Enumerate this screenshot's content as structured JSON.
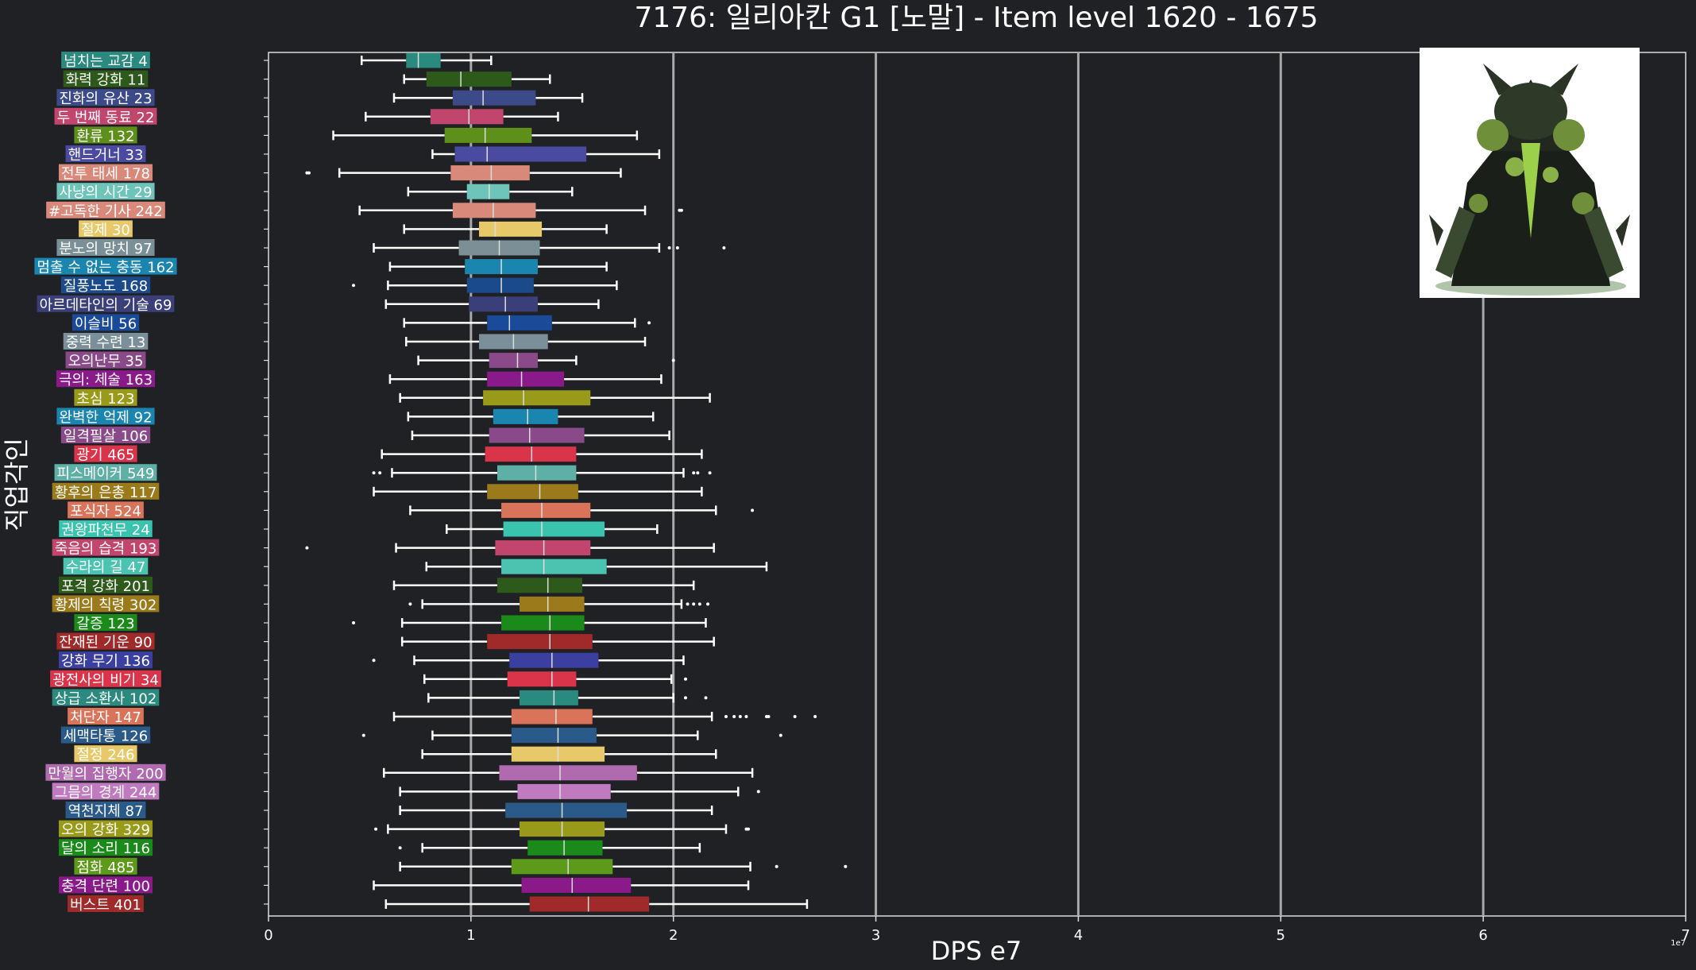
{
  "chart_data": {
    "type": "box",
    "title": "7176: 일리아칸 G1 [노말] - Item level 1620 - 1675",
    "xlabel": "DPS e7",
    "ylabel": "직업각인",
    "x_multiplier_label": "1e7",
    "xlim": [
      0,
      7
    ],
    "xticks": [
      0,
      1,
      2,
      3,
      4,
      5,
      6,
      7
    ],
    "grid": "vertical lines at x = 1, 2, 3, 4, 5, 6",
    "image_top_right": "boss-portrait",
    "series": [
      {
        "label": "넘치는 교감 4",
        "color": "#2a8a80",
        "whisker_low": 0.46,
        "q1": 0.68,
        "median": 0.74,
        "q3": 0.85,
        "whisker_high": 1.1,
        "outliers": []
      },
      {
        "label": "화력 강화 11",
        "color": "#2d5a1a",
        "whisker_low": 0.67,
        "q1": 0.78,
        "median": 0.95,
        "q3": 1.2,
        "whisker_high": 1.39,
        "outliers": []
      },
      {
        "label": "진화의 유산 23",
        "color": "#3d4a8a",
        "whisker_low": 0.62,
        "q1": 0.91,
        "median": 1.06,
        "q3": 1.32,
        "whisker_high": 1.55,
        "outliers": []
      },
      {
        "label": "두 번째 동료 22",
        "color": "#c2456e",
        "whisker_low": 0.48,
        "q1": 0.8,
        "median": 0.99,
        "q3": 1.16,
        "whisker_high": 1.43,
        "outliers": []
      },
      {
        "label": "환류 132",
        "color": "#5e8f1a",
        "whisker_low": 0.32,
        "q1": 0.87,
        "median": 1.07,
        "q3": 1.3,
        "whisker_high": 1.82,
        "outliers": []
      },
      {
        "label": "핸드거너 33",
        "color": "#4a4aa0",
        "whisker_low": 0.81,
        "q1": 0.92,
        "median": 1.08,
        "q3": 1.57,
        "whisker_high": 1.93,
        "outliers": []
      },
      {
        "label": "전투 태세 178",
        "color": "#d9897a",
        "whisker_low": 0.35,
        "q1": 0.9,
        "median": 1.1,
        "q3": 1.29,
        "whisker_high": 1.74,
        "outliers": [
          0.19,
          0.2
        ]
      },
      {
        "label": "사냥의 시간 29",
        "color": "#6ec4b9",
        "whisker_low": 0.69,
        "q1": 0.98,
        "median": 1.09,
        "q3": 1.19,
        "whisker_high": 1.5,
        "outliers": []
      },
      {
        "label": "#고독한 기사 242",
        "color": "#d9897a",
        "whisker_low": 0.45,
        "q1": 0.91,
        "median": 1.11,
        "q3": 1.32,
        "whisker_high": 1.86,
        "outliers": [
          2.03,
          2.04
        ]
      },
      {
        "label": "절제 30",
        "color": "#e8c96a",
        "whisker_low": 0.67,
        "q1": 1.04,
        "median": 1.12,
        "q3": 1.35,
        "whisker_high": 1.67,
        "outliers": []
      },
      {
        "label": "분노의 망치 97",
        "color": "#7a8f96",
        "whisker_low": 0.52,
        "q1": 0.94,
        "median": 1.14,
        "q3": 1.34,
        "whisker_high": 1.93,
        "outliers": [
          1.98,
          2.02,
          2.25
        ]
      },
      {
        "label": "멈출 수 없는 충동 162",
        "color": "#1a86b0",
        "whisker_low": 0.6,
        "q1": 0.97,
        "median": 1.15,
        "q3": 1.33,
        "whisker_high": 1.67,
        "outliers": []
      },
      {
        "label": "질풍노도 168",
        "color": "#1a4a8a",
        "whisker_low": 0.59,
        "q1": 0.98,
        "median": 1.15,
        "q3": 1.31,
        "whisker_high": 1.72,
        "outliers": [
          0.42
        ]
      },
      {
        "label": "아르데타인의 기술 69",
        "color": "#3a3f7a",
        "whisker_low": 0.58,
        "q1": 0.99,
        "median": 1.17,
        "q3": 1.33,
        "whisker_high": 1.63,
        "outliers": []
      },
      {
        "label": "이슬비 56",
        "color": "#1a4a9a",
        "whisker_low": 0.67,
        "q1": 1.08,
        "median": 1.19,
        "q3": 1.4,
        "whisker_high": 1.81,
        "outliers": [
          1.88
        ]
      },
      {
        "label": "중력 수련 13",
        "color": "#7a8f9a",
        "whisker_low": 0.68,
        "q1": 1.04,
        "median": 1.21,
        "q3": 1.38,
        "whisker_high": 1.86,
        "outliers": []
      },
      {
        "label": "오의난무 35",
        "color": "#8a4a8a",
        "whisker_low": 0.74,
        "q1": 1.09,
        "median": 1.23,
        "q3": 1.33,
        "whisker_high": 1.52,
        "outliers": [
          2.0
        ]
      },
      {
        "label": "극의: 체술 163",
        "color": "#8a1a8a",
        "whisker_low": 0.6,
        "q1": 1.08,
        "median": 1.25,
        "q3": 1.46,
        "whisker_high": 1.94,
        "outliers": []
      },
      {
        "label": "초심 123",
        "color": "#9a9a1a",
        "whisker_low": 0.65,
        "q1": 1.06,
        "median": 1.26,
        "q3": 1.59,
        "whisker_high": 2.18,
        "outliers": []
      },
      {
        "label": "완벽한 억제 92",
        "color": "#1a86b0",
        "whisker_low": 0.69,
        "q1": 1.11,
        "median": 1.28,
        "q3": 1.43,
        "whisker_high": 1.9,
        "outliers": []
      },
      {
        "label": "일격필살 106",
        "color": "#8a4a8a",
        "whisker_low": 0.71,
        "q1": 1.09,
        "median": 1.29,
        "q3": 1.56,
        "whisker_high": 1.98,
        "outliers": []
      },
      {
        "label": "광기 465",
        "color": "#d9344a",
        "whisker_low": 0.56,
        "q1": 1.07,
        "median": 1.3,
        "q3": 1.52,
        "whisker_high": 2.14,
        "outliers": []
      },
      {
        "label": "피스메이커 549",
        "color": "#5eb0a6",
        "whisker_low": 0.61,
        "q1": 1.13,
        "median": 1.32,
        "q3": 1.52,
        "whisker_high": 2.05,
        "outliers": [
          0.52,
          0.55,
          2.1,
          2.12,
          2.18
        ]
      },
      {
        "label": "황후의 은총 117",
        "color": "#9a7a1a",
        "whisker_low": 0.52,
        "q1": 1.08,
        "median": 1.34,
        "q3": 1.53,
        "whisker_high": 2.14,
        "outliers": []
      },
      {
        "label": "포식자 524",
        "color": "#d9735a",
        "whisker_low": 0.7,
        "q1": 1.15,
        "median": 1.35,
        "q3": 1.59,
        "whisker_high": 2.21,
        "outliers": [
          2.39
        ]
      },
      {
        "label": "권왕파천무 24",
        "color": "#3ac4b0",
        "whisker_low": 0.88,
        "q1": 1.16,
        "median": 1.35,
        "q3": 1.66,
        "whisker_high": 1.92,
        "outliers": []
      },
      {
        "label": "죽음의 습격 193",
        "color": "#c2456e",
        "whisker_low": 0.63,
        "q1": 1.12,
        "median": 1.36,
        "q3": 1.59,
        "whisker_high": 2.2,
        "outliers": [
          0.19
        ]
      },
      {
        "label": "수라의 길 47",
        "color": "#4ac4b0",
        "whisker_low": 0.78,
        "q1": 1.15,
        "median": 1.36,
        "q3": 1.67,
        "whisker_high": 2.46,
        "outliers": []
      },
      {
        "label": "포격 강화 201",
        "color": "#2d5a1a",
        "whisker_low": 0.62,
        "q1": 1.13,
        "median": 1.38,
        "q3": 1.55,
        "whisker_high": 2.1,
        "outliers": []
      },
      {
        "label": "황제의 칙령 302",
        "color": "#9a7a1a",
        "whisker_low": 0.76,
        "q1": 1.24,
        "median": 1.38,
        "q3": 1.56,
        "whisker_high": 2.04,
        "outliers": [
          0.7,
          2.07,
          2.1,
          2.13,
          2.17
        ]
      },
      {
        "label": "갈증 123",
        "color": "#1a8a1a",
        "whisker_low": 0.66,
        "q1": 1.15,
        "median": 1.39,
        "q3": 1.56,
        "whisker_high": 2.16,
        "outliers": [
          0.42
        ]
      },
      {
        "label": "잔재된 기운 90",
        "color": "#a02a2a",
        "whisker_low": 0.66,
        "q1": 1.08,
        "median": 1.39,
        "q3": 1.6,
        "whisker_high": 2.2,
        "outliers": []
      },
      {
        "label": "강화 무기 136",
        "color": "#3a3fa0",
        "whisker_low": 0.72,
        "q1": 1.19,
        "median": 1.4,
        "q3": 1.63,
        "whisker_high": 2.05,
        "outliers": [
          0.52
        ]
      },
      {
        "label": "광전사의 비기 34",
        "color": "#d9344a",
        "whisker_low": 0.77,
        "q1": 1.18,
        "median": 1.4,
        "q3": 1.52,
        "whisker_high": 1.99,
        "outliers": [
          2.06
        ]
      },
      {
        "label": "상급 소환사 102",
        "color": "#2a8a80",
        "whisker_low": 0.79,
        "q1": 1.24,
        "median": 1.41,
        "q3": 1.53,
        "whisker_high": 2.0,
        "outliers": [
          2.06,
          2.16
        ]
      },
      {
        "label": "처단자 147",
        "color": "#d9735a",
        "whisker_low": 0.62,
        "q1": 1.2,
        "median": 1.42,
        "q3": 1.6,
        "whisker_high": 2.19,
        "outliers": [
          2.26,
          2.3,
          2.33,
          2.36,
          2.46,
          2.47,
          2.6,
          2.7
        ]
      },
      {
        "label": "세맥타통 126",
        "color": "#2a5a8a",
        "whisker_low": 0.81,
        "q1": 1.2,
        "median": 1.43,
        "q3": 1.62,
        "whisker_high": 2.12,
        "outliers": [
          0.47,
          2.53
        ]
      },
      {
        "label": "절정 246",
        "color": "#e8c96a",
        "whisker_low": 0.76,
        "q1": 1.2,
        "median": 1.43,
        "q3": 1.66,
        "whisker_high": 2.21,
        "outliers": []
      },
      {
        "label": "만월의 집행자 200",
        "color": "#b06ab0",
        "whisker_low": 0.57,
        "q1": 1.14,
        "median": 1.44,
        "q3": 1.82,
        "whisker_high": 2.39,
        "outliers": []
      },
      {
        "label": "그믐의 경계 244",
        "color": "#c07ac0",
        "whisker_low": 0.65,
        "q1": 1.23,
        "median": 1.44,
        "q3": 1.69,
        "whisker_high": 2.32,
        "outliers": [
          2.42
        ]
      },
      {
        "label": "역천지체 87",
        "color": "#2a5a8a",
        "whisker_low": 0.65,
        "q1": 1.17,
        "median": 1.45,
        "q3": 1.77,
        "whisker_high": 2.19,
        "outliers": []
      },
      {
        "label": "오의 강화 329",
        "color": "#9a9a1a",
        "whisker_low": 0.59,
        "q1": 1.24,
        "median": 1.45,
        "q3": 1.66,
        "whisker_high": 2.26,
        "outliers": [
          0.53,
          2.36,
          2.37
        ]
      },
      {
        "label": "달의 소리 116",
        "color": "#1a8a1a",
        "whisker_low": 0.76,
        "q1": 1.28,
        "median": 1.46,
        "q3": 1.65,
        "whisker_high": 2.13,
        "outliers": [
          0.65
        ]
      },
      {
        "label": "점화 485",
        "color": "#5e9a1a",
        "whisker_low": 0.65,
        "q1": 1.2,
        "median": 1.48,
        "q3": 1.7,
        "whisker_high": 2.38,
        "outliers": [
          2.51,
          2.85
        ]
      },
      {
        "label": "충격 단련 100",
        "color": "#8a1a8a",
        "whisker_low": 0.52,
        "q1": 1.25,
        "median": 1.5,
        "q3": 1.79,
        "whisker_high": 2.37,
        "outliers": []
      },
      {
        "label": "버스트 401",
        "color": "#a02a2a",
        "whisker_low": 0.58,
        "q1": 1.29,
        "median": 1.58,
        "q3": 1.88,
        "whisker_high": 2.66,
        "outliers": []
      }
    ]
  }
}
